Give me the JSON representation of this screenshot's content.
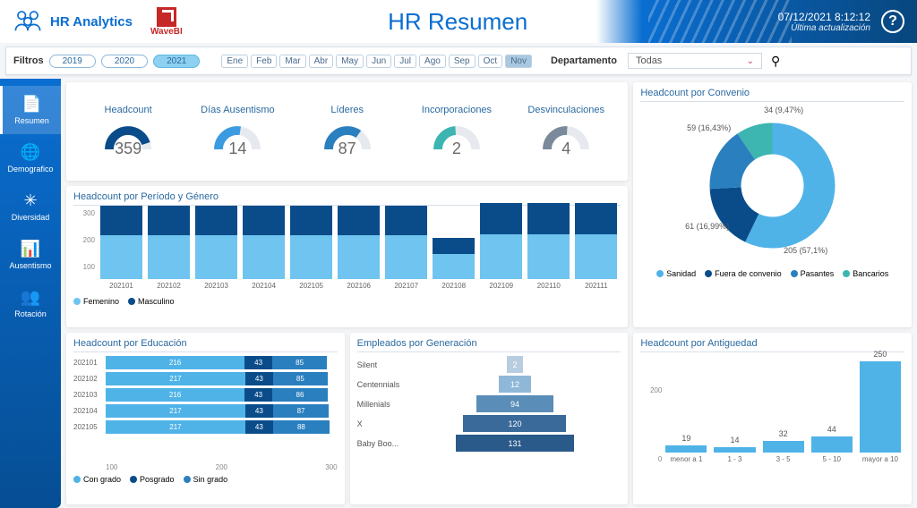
{
  "header": {
    "app_name": "HR Analytics",
    "wavebi_label": "WaveBI",
    "title": "HR Resumen",
    "timestamp": "07/12/2021 8:12:12",
    "subtitle": "Última actualización",
    "help": "?"
  },
  "filters": {
    "label": "Filtros",
    "years": [
      "2019",
      "2020",
      "2021"
    ],
    "active_year": "2021",
    "months": [
      "Ene",
      "Feb",
      "Mar",
      "Abr",
      "May",
      "Jun",
      "Jul",
      "Ago",
      "Sep",
      "Oct",
      "Nov"
    ],
    "active_month": "Nov",
    "dept_label": "Departamento",
    "dept_value": "Todas"
  },
  "nav": [
    {
      "icon": "📄",
      "label": "Resumen",
      "active": true
    },
    {
      "icon": "🌐",
      "label": "Demografico"
    },
    {
      "icon": "✳",
      "label": "Diversidad"
    },
    {
      "icon": "📊",
      "label": "Ausentismo"
    },
    {
      "icon": "👥",
      "label": "Rotación"
    }
  ],
  "kpis": [
    {
      "label": "Headcount",
      "value": "359",
      "color": "#0a4c8a",
      "pct": 90
    },
    {
      "label": "Días Ausentismo",
      "value": "14",
      "color": "#3a9be0",
      "pct": 55
    },
    {
      "label": "Líderes",
      "value": "87",
      "color": "#2a7fbf",
      "pct": 70
    },
    {
      "label": "Incorporaciones",
      "value": "2",
      "color": "#3db5b0",
      "pct": 48
    },
    {
      "label": "Desvinculaciones",
      "value": "4",
      "color": "#7a8a9a",
      "pct": 52
    }
  ],
  "convenio": {
    "title": "Headcount por Convenio",
    "data": [
      {
        "label": "Sanidad",
        "value": 205,
        "pct": "57,1%",
        "color": "#4fb3e8"
      },
      {
        "label": "Fuera de convenio",
        "value": 61,
        "pct": "16,99%",
        "color": "#0a4c8a"
      },
      {
        "label": "Pasantes",
        "value": 59,
        "pct": "16,43%",
        "color": "#2a7fbf"
      },
      {
        "label": "Bancarios",
        "value": 34,
        "pct": "9,47%",
        "color": "#3db5b0"
      }
    ],
    "labels": {
      "a": "34 (9,47%)",
      "b": "59 (16,43%)",
      "c": "61 (16,99%)",
      "d": "205 (57,1%)"
    }
  },
  "period": {
    "title": "Headcount por Período y Género",
    "ylabels": [
      "300",
      "200",
      "100"
    ],
    "legend": [
      {
        "label": "Femenino",
        "color": "#6fc4f0"
      },
      {
        "label": "Masculino",
        "color": "#0a4c8a"
      }
    ],
    "bars": [
      {
        "cat": "202101",
        "f": 190,
        "m": 130
      },
      {
        "cat": "202102",
        "f": 190,
        "m": 130
      },
      {
        "cat": "202103",
        "f": 190,
        "m": 130
      },
      {
        "cat": "202104",
        "f": 190,
        "m": 130
      },
      {
        "cat": "202105",
        "f": 190,
        "m": 130
      },
      {
        "cat": "202106",
        "f": 190,
        "m": 130
      },
      {
        "cat": "202107",
        "f": 190,
        "m": 130
      },
      {
        "cat": "202108",
        "f": 110,
        "m": 70
      },
      {
        "cat": "202109",
        "f": 195,
        "m": 135
      },
      {
        "cat": "202110",
        "f": 195,
        "m": 135
      },
      {
        "cat": "202111",
        "f": 195,
        "m": 135
      }
    ],
    "max": 350
  },
  "edu": {
    "title": "Headcount por Educación",
    "xlabels": [
      "100",
      "200",
      "300"
    ],
    "legend": [
      {
        "label": "Con grado",
        "color": "#4fb3e8"
      },
      {
        "label": "Posgrado",
        "color": "#0a4c8a"
      },
      {
        "label": "Sin grado",
        "color": "#2a7fbf"
      }
    ],
    "rows": [
      {
        "cat": "202101",
        "a": 216,
        "b": 43,
        "c": 85
      },
      {
        "cat": "202102",
        "a": 217,
        "b": 43,
        "c": 85
      },
      {
        "cat": "202103",
        "a": 216,
        "b": 43,
        "c": 86
      },
      {
        "cat": "202104",
        "a": 217,
        "b": 43,
        "c": 87
      },
      {
        "cat": "202105",
        "a": 217,
        "b": 43,
        "c": 88
      }
    ],
    "max": 360
  },
  "gen": {
    "title": "Empleados por Generación",
    "rows": [
      {
        "cat": "Silent",
        "value": 2,
        "color": "#b8cde0",
        "w": 18
      },
      {
        "cat": "Centennials",
        "value": 12,
        "color": "#8fb8d8",
        "w": 36
      },
      {
        "cat": "Millenials",
        "value": 94,
        "color": "#5a8db8",
        "w": 86
      },
      {
        "cat": "X",
        "value": 120,
        "color": "#3a6a9a",
        "w": 115
      },
      {
        "cat": "Baby Boo...",
        "value": 131,
        "color": "#2a5a8a",
        "w": 132
      }
    ]
  },
  "seniority": {
    "title": "Headcount por Antiguedad",
    "ylabels": [
      "200",
      "0"
    ],
    "max": 270,
    "bars": [
      {
        "cat": "menor a 1",
        "value": 19
      },
      {
        "cat": "1 - 3",
        "value": 14
      },
      {
        "cat": "3 - 5",
        "value": 32
      },
      {
        "cat": "5 - 10",
        "value": 44
      },
      {
        "cat": "mayor a 10",
        "value": 250
      }
    ]
  }
}
